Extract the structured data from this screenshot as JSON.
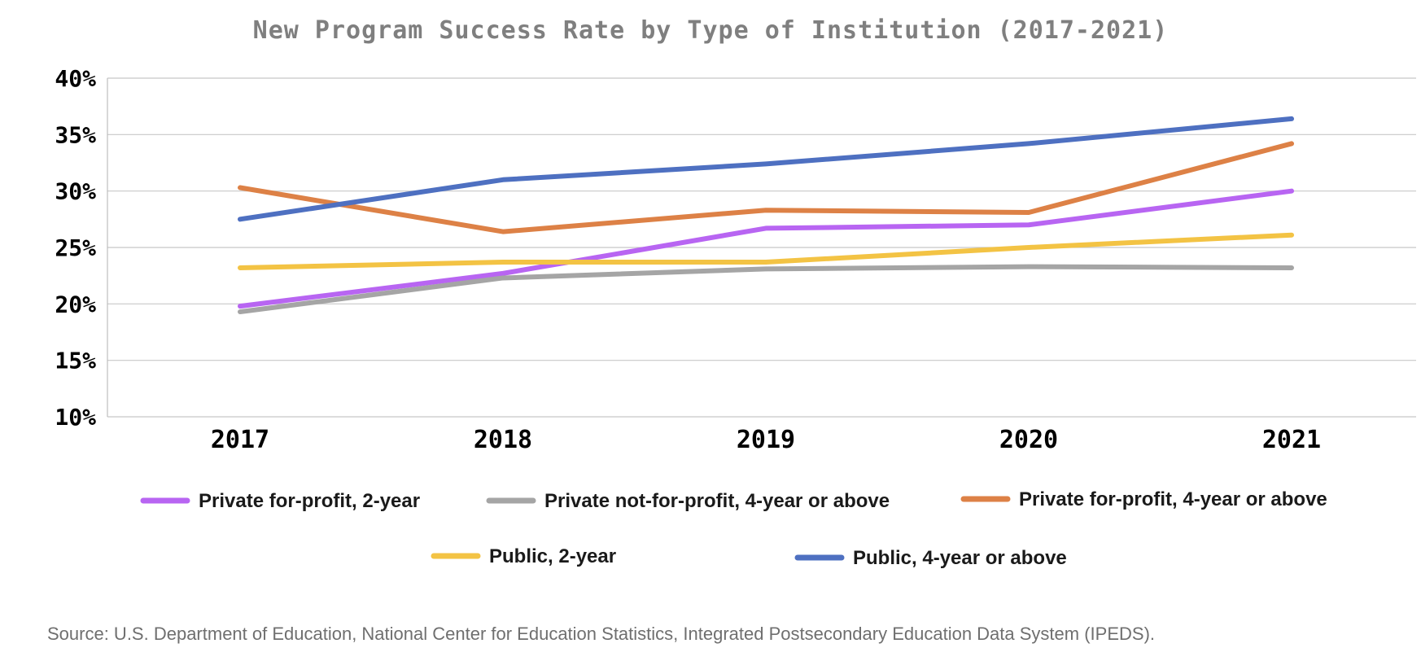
{
  "chart_data": {
    "type": "line",
    "title": "New Program Success Rate by Type of Institution (2017-2021)",
    "categories": [
      "2017",
      "2018",
      "2019",
      "2020",
      "2021"
    ],
    "ylim": [
      0.1,
      0.4
    ],
    "yticks": [
      0.1,
      0.15,
      0.2,
      0.25,
      0.3,
      0.35,
      0.4
    ],
    "ytick_labels": [
      "10%",
      "15%",
      "20%",
      "25%",
      "30%",
      "35%",
      "40%"
    ],
    "grid": true,
    "legend_position": "bottom",
    "series": [
      {
        "name": "Private for-profit, 2-year",
        "color": "#b865f2",
        "values": [
          0.198,
          0.227,
          0.267,
          0.27,
          0.3
        ]
      },
      {
        "name": "Private not-for-profit, 4-year or above",
        "color": "#a5a5a5",
        "values": [
          0.193,
          0.223,
          0.231,
          0.233,
          0.232
        ]
      },
      {
        "name": "Private for-profit, 4-year or above",
        "color": "#dd8146",
        "values": [
          0.303,
          0.264,
          0.283,
          0.281,
          0.342
        ]
      },
      {
        "name": "Public, 2-year",
        "color": "#f3c344",
        "values": [
          0.232,
          0.237,
          0.237,
          0.25,
          0.261
        ]
      },
      {
        "name": "Public, 4-year or above",
        "color": "#4e70c1",
        "values": [
          0.275,
          0.31,
          0.324,
          0.342,
          0.364
        ]
      }
    ],
    "source": "Source: U.S. Department of Education, National Center for Education Statistics, Integrated Postsecondary Education Data System (IPEDS)."
  }
}
